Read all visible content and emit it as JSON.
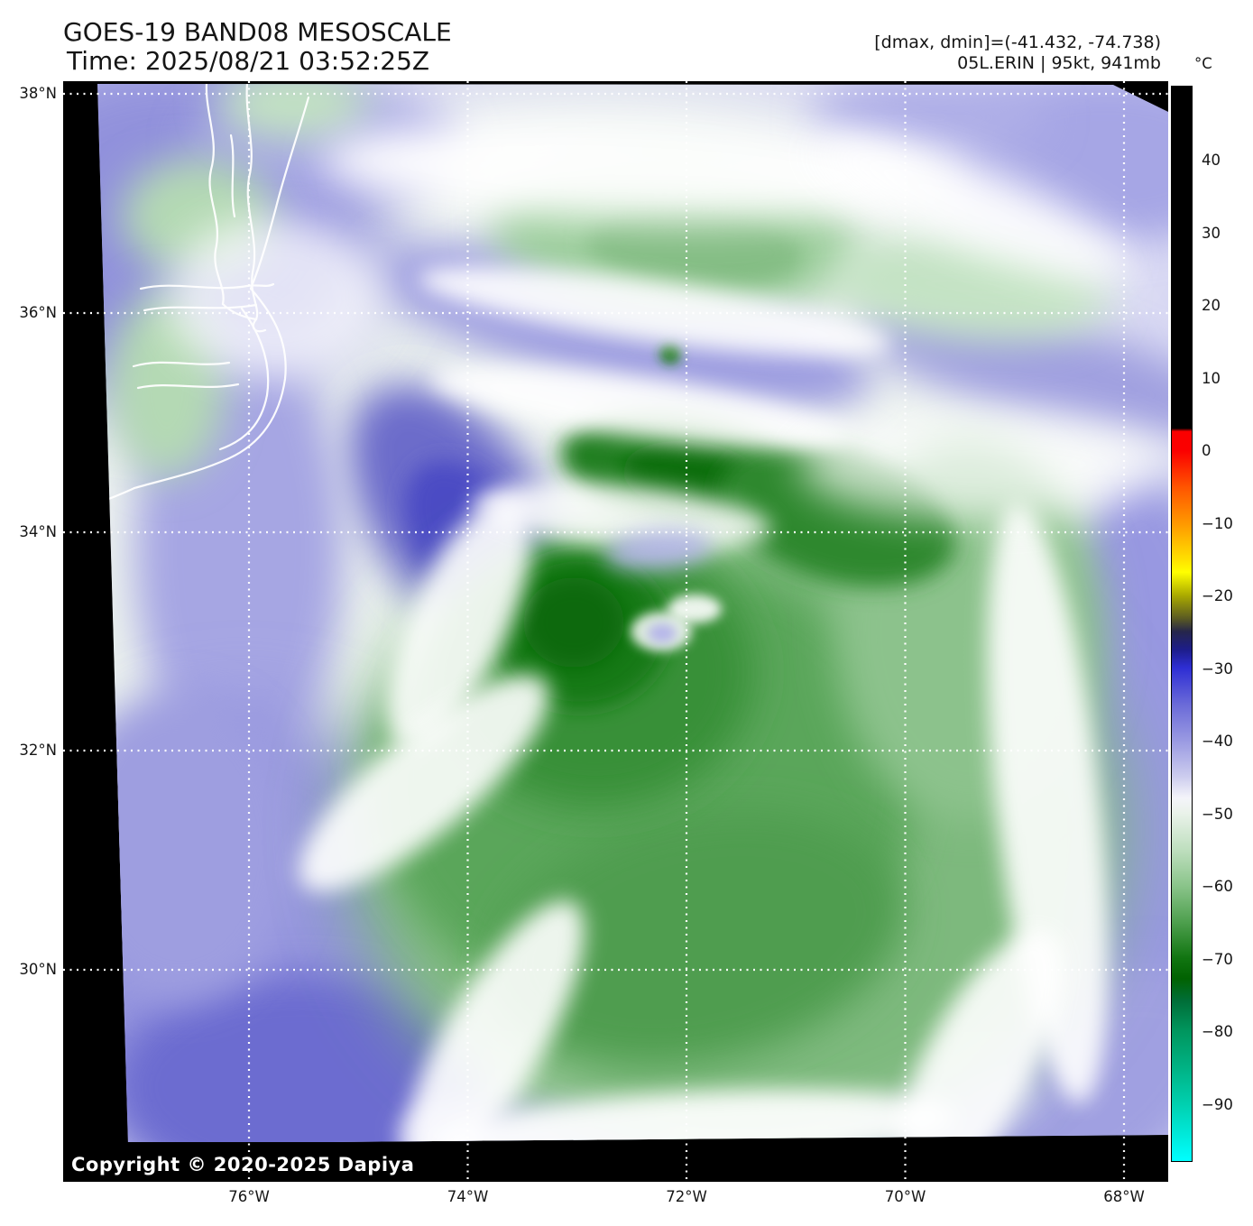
{
  "header": {
    "title": "GOES-19 BAND08 MESOSCALE",
    "time": "Time: 2025/08/21 03:52:25Z",
    "range_info": "[dmax, dmin]=(-41.432, -74.738)",
    "storm_info": "05L.ERIN | 95kt, 941mb"
  },
  "colorbar": {
    "unit": "°C",
    "tick_labels": [
      "40",
      "30",
      "20",
      "10",
      "0",
      "−10",
      "−20",
      "−30",
      "−40",
      "−50",
      "−60",
      "−70",
      "−80",
      "−90"
    ]
  },
  "axes": {
    "lat_ticks": [
      "38°N",
      "36°N",
      "34°N",
      "32°N",
      "30°N"
    ],
    "lon_ticks": [
      "76°W",
      "74°W",
      "72°W",
      "70°W",
      "68°W"
    ]
  },
  "footer": {
    "copyright": "Copyright © 2020-2025 Dapiya"
  },
  "chart_data": {
    "type": "heatmap",
    "title": "GOES-19 BAND08 MESOSCALE",
    "time_utc": "2025/08/21 03:52:25Z",
    "storm": {
      "id": "05L",
      "name": "ERIN",
      "intensity_kt": 95,
      "pressure_mb": 941
    },
    "dmax_c": -41.432,
    "dmin_c": -74.738,
    "colorbar_unit": "°C",
    "colorbar_ticks_c": [
      40,
      30,
      20,
      10,
      0,
      -10,
      -20,
      -30,
      -40,
      -50,
      -60,
      -70,
      -80,
      -90
    ],
    "lat_ticks_deg_n": [
      38,
      36,
      34,
      32,
      30
    ],
    "lon_ticks_deg_w": [
      76,
      74,
      72,
      70,
      68
    ],
    "legend_position": "right",
    "grid": "dotted-white"
  }
}
